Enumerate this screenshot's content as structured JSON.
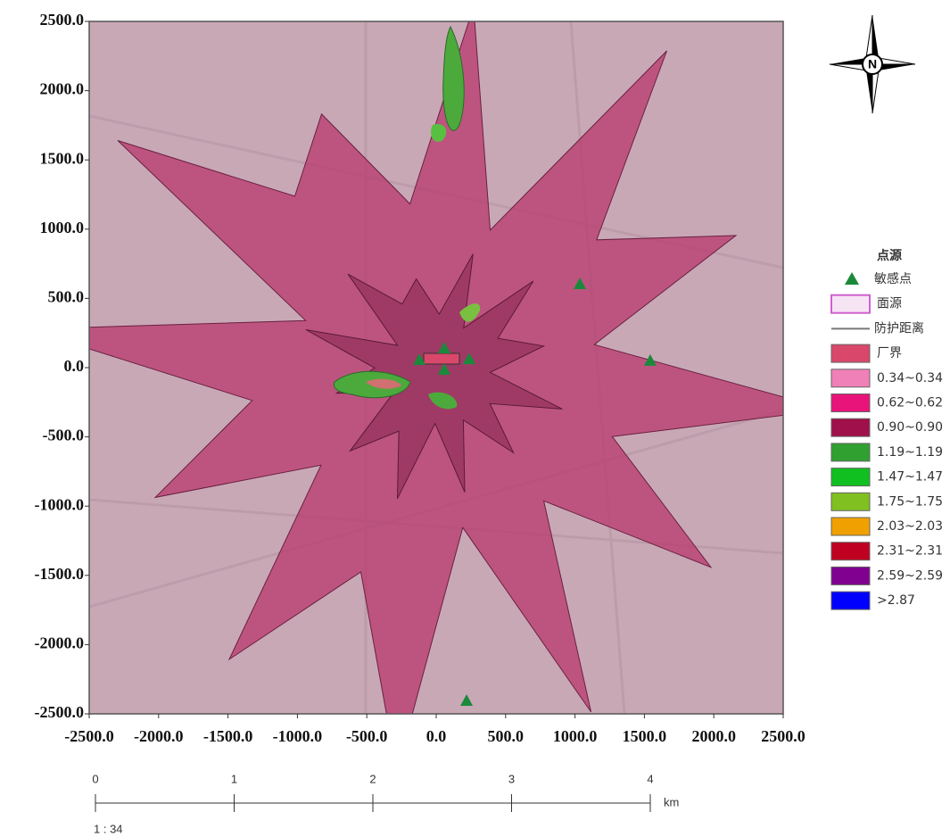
{
  "map": {
    "x_axis": {
      "lim": [
        -2500,
        2500
      ],
      "ticks": [
        {
          "value": -2500,
          "label": "-2500.0"
        },
        {
          "value": -2000,
          "label": "-2000.0"
        },
        {
          "value": -1500,
          "label": "-1500.0"
        },
        {
          "value": -1000,
          "label": "-1000.0"
        },
        {
          "value": -500,
          "label": "-500.0"
        },
        {
          "value": 0,
          "label": "0.0"
        },
        {
          "value": 500,
          "label": "500.0"
        },
        {
          "value": 1000,
          "label": "1000.0"
        },
        {
          "value": 1500,
          "label": "1500.0"
        },
        {
          "value": 2000,
          "label": "2000.0"
        },
        {
          "value": 2500,
          "label": "2500.0"
        }
      ]
    },
    "y_axis": {
      "lim": [
        -2500,
        2500
      ],
      "ticks": [
        {
          "value": 2500,
          "label": "2500.0"
        },
        {
          "value": 2000,
          "label": "2000.0"
        },
        {
          "value": 1500,
          "label": "1500.0"
        },
        {
          "value": 1000,
          "label": "1000.0"
        },
        {
          "value": 500,
          "label": "500.0"
        },
        {
          "value": 0,
          "label": "0.0"
        },
        {
          "value": -500,
          "label": "-500.0"
        },
        {
          "value": -1000,
          "label": "-1000.0"
        },
        {
          "value": -1500,
          "label": "-1500.0"
        },
        {
          "value": -2000,
          "label": "-2000.0"
        },
        {
          "value": -2500,
          "label": "-2500.0"
        }
      ]
    },
    "sensitive_points": {
      "color": "#1a8a3a",
      "x": [
        1035,
        1542,
        219,
        -122,
        58,
        238,
        58
      ],
      "y": [
        606,
        52,
        -2403,
        58,
        142,
        64,
        -13
      ]
    },
    "compass": "N",
    "legend": {
      "title": "点源",
      "items": [
        {
          "label": "敏感点",
          "shape": "triangle",
          "color": "#1a8a3a"
        },
        {
          "label": "面源",
          "shape": "outline",
          "color": "#d060d0"
        },
        {
          "label": "防护距离",
          "shape": "line",
          "color": "#777777"
        },
        {
          "label": "厂界",
          "shape": "box",
          "color": "#d9476b"
        },
        {
          "label": "0.34~0.34",
          "shape": "box",
          "color": "#f080b8"
        },
        {
          "label": "0.62~0.62",
          "shape": "box",
          "color": "#e8147a"
        },
        {
          "label": "0.90~0.90",
          "shape": "box",
          "color": "#a0104a"
        },
        {
          "label": "1.19~1.19",
          "shape": "box",
          "color": "#30a030"
        },
        {
          "label": "1.47~1.47",
          "shape": "box",
          "color": "#10c020"
        },
        {
          "label": "1.75~1.75",
          "shape": "box",
          "color": "#80c020"
        },
        {
          "label": "2.03~2.03",
          "shape": "box",
          "color": "#f0a000"
        },
        {
          "label": "2.31~2.31",
          "shape": "box",
          "color": "#c00020"
        },
        {
          "label": "2.59~2.59",
          "shape": "box",
          "color": "#800090"
        },
        {
          "label": ">2.87",
          "shape": "box",
          "color": "#0000ff"
        }
      ]
    },
    "scale_bar": {
      "lim": [
        0,
        4
      ],
      "ticks": [
        0,
        1,
        2,
        3,
        4
      ],
      "unit": "km",
      "ratio": "1 : 34"
    }
  }
}
